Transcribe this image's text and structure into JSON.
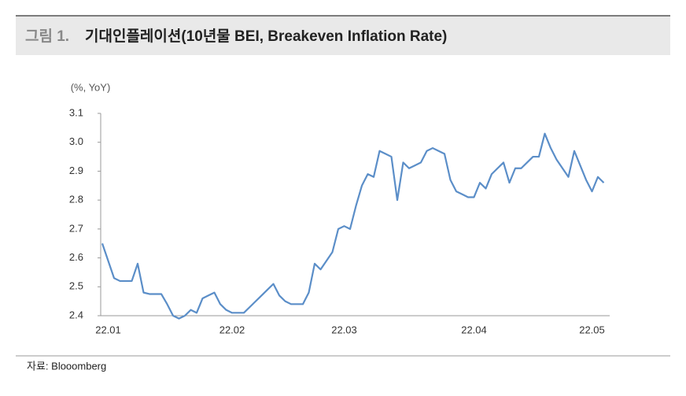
{
  "chart_data": {
    "type": "line",
    "title_prefix": "그림 1.",
    "title": "기대인플레이션(10년물 BEI, Breakeven Inflation Rate)",
    "y_label": "(%, YoY)",
    "source": "자료: Blooomberg",
    "categories": [
      null,
      "22.01",
      null,
      null,
      null,
      null,
      null,
      null,
      null,
      null,
      null,
      null,
      null,
      null,
      null,
      null,
      null,
      null,
      null,
      null,
      null,
      null,
      "22.02",
      null,
      null,
      null,
      null,
      null,
      null,
      null,
      null,
      null,
      null,
      null,
      null,
      null,
      null,
      null,
      null,
      null,
      null,
      "22.03",
      null,
      null,
      null,
      null,
      null,
      null,
      null,
      null,
      null,
      null,
      null,
      null,
      null,
      null,
      null,
      null,
      null,
      null,
      null,
      null,
      null,
      "22.04",
      null,
      null,
      null,
      null,
      null,
      null,
      null,
      null,
      null,
      null,
      null,
      null,
      null,
      null,
      null,
      null,
      null,
      null,
      null,
      "22.05",
      null,
      null
    ],
    "series": [
      {
        "name": "BEI",
        "color": "#5b8ec8",
        "values": [
          2.65,
          2.59,
          2.53,
          2.52,
          2.52,
          2.52,
          2.58,
          2.48,
          2.475,
          2.475,
          2.475,
          2.44,
          2.4,
          2.39,
          2.4,
          2.42,
          2.41,
          2.46,
          2.47,
          2.48,
          2.44,
          2.42,
          2.41,
          2.41,
          2.41,
          2.43,
          2.45,
          2.47,
          2.49,
          2.51,
          2.47,
          2.45,
          2.44,
          2.44,
          2.44,
          2.48,
          2.58,
          2.56,
          2.59,
          2.62,
          2.7,
          2.71,
          2.7,
          2.78,
          2.85,
          2.89,
          2.88,
          2.97,
          2.96,
          2.95,
          2.8,
          2.93,
          2.91,
          2.92,
          2.93,
          2.97,
          2.98,
          2.97,
          2.96,
          2.87,
          2.83,
          2.82,
          2.81,
          2.81,
          2.86,
          2.84,
          2.89,
          2.91,
          2.93,
          2.86,
          2.91,
          2.91,
          2.93,
          2.95,
          2.95,
          3.03,
          2.98,
          2.94,
          2.91,
          2.88,
          2.97,
          2.92,
          2.87,
          2.83,
          2.88,
          2.86
        ]
      }
    ],
    "ylim": [
      2.4,
      3.1
    ],
    "yticks": [
      {
        "value": 2.4,
        "label": "2.4"
      },
      {
        "value": 2.5,
        "label": "2.5"
      },
      {
        "value": 2.6,
        "label": "2.6"
      },
      {
        "value": 2.7,
        "label": "2.7"
      },
      {
        "value": 2.8,
        "label": "2.8"
      },
      {
        "value": 2.9,
        "label": "2.9"
      },
      {
        "value": 3.0,
        "label": "3.0"
      },
      {
        "value": 3.1,
        "label": "3.1"
      }
    ],
    "grid": false
  }
}
